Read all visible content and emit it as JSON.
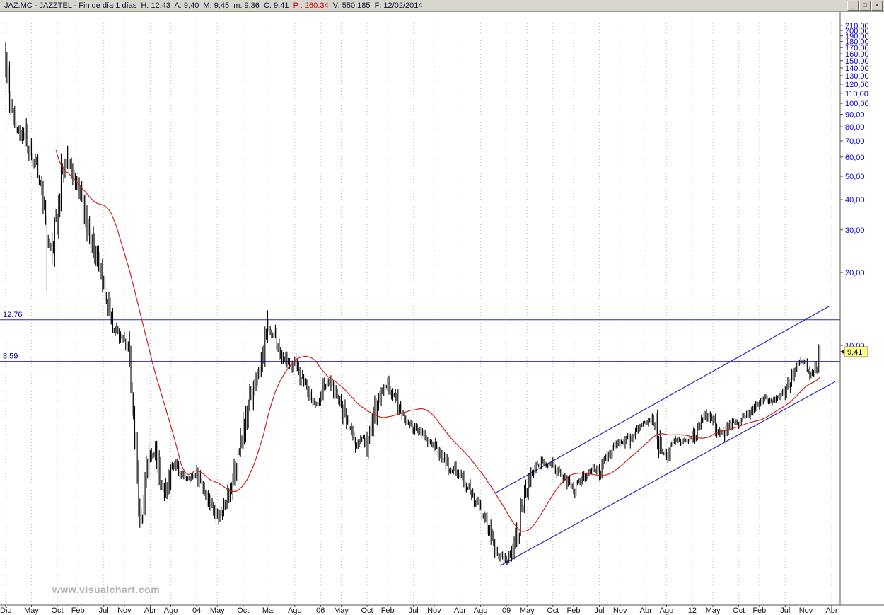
{
  "window": {
    "title_main": "JAZ.MC - JAZZTEL - Fin de día 1 días  H: 12:43  A: 9,40  M: 9,45  m: 9,36  C: 9,41  ",
    "title_p": "P : 260.34",
    "title_rest": "  V: 550.185  F: 12/02/2014",
    "buttons": {
      "minimize": "_",
      "maximize": "□",
      "close": "×"
    }
  },
  "chart_data": {
    "type": "bar",
    "subtype": "ohlc-daily-price-bars",
    "title": "JAZ.MC - JAZZTEL - Fin de día 1 días",
    "yscale": "log",
    "ylim": [
      1.2,
      210
    ],
    "x_start": "2000-12",
    "x_end": "2014-02",
    "last_price": 9.41,
    "monthly_close": [
      148,
      95,
      80,
      72,
      78,
      62,
      55,
      45,
      28,
      26,
      36,
      50,
      60,
      52,
      45,
      38,
      31,
      26,
      21,
      16.5,
      14,
      12,
      11,
      10.2,
      9.3,
      4.5,
      1.9,
      2.5,
      3.4,
      3.7,
      2.7,
      2.3,
      3.0,
      3.3,
      2.95,
      2.8,
      2.85,
      2.9,
      2.65,
      2.4,
      2.15,
      1.95,
      2.1,
      2.35,
      2.7,
      3.4,
      4.3,
      5.3,
      6.6,
      7.9,
      9.6,
      12.1,
      11.2,
      9.7,
      8.7,
      8.1,
      8.7,
      7.5,
      6.7,
      6.1,
      5.7,
      6.0,
      6.8,
      7.1,
      6.2,
      5.6,
      4.9,
      4.3,
      3.9,
      4.1,
      3.95,
      4.7,
      5.9,
      6.6,
      6.9,
      6.3,
      5.7,
      5.1,
      4.7,
      4.45,
      4.7,
      4.25,
      3.95,
      3.85,
      3.6,
      3.35,
      3.05,
      3.1,
      2.9,
      2.7,
      2.45,
      2.25,
      2.1,
      1.9,
      1.62,
      1.45,
      1.35,
      1.3,
      1.36,
      1.62,
      2.2,
      2.6,
      2.9,
      3.15,
      3.3,
      3.2,
      3.25,
      3.0,
      2.85,
      2.7,
      2.55,
      2.75,
      2.9,
      3.05,
      3.1,
      3.0,
      3.3,
      3.6,
      3.85,
      3.95,
      3.9,
      4.2,
      4.5,
      4.7,
      4.8,
      4.95,
      4.6,
      3.6,
      3.5,
      3.9,
      4.1,
      4.0,
      4.05,
      4.1,
      4.5,
      4.9,
      5.25,
      5.0,
      4.4,
      4.3,
      4.6,
      4.85,
      4.8,
      5.0,
      5.2,
      5.5,
      5.8,
      6.0,
      5.9,
      6.1,
      6.3,
      6.45,
      7.2,
      8.0,
      8.5,
      8.3,
      7.7,
      8.3,
      9.41
    ],
    "moving_average": {
      "window_months": 10
    },
    "levels": [
      {
        "label": "12.76",
        "value": 12.76
      },
      {
        "label": "8.59",
        "value": 8.59
      }
    ],
    "trendlines": [
      {
        "name": "channel-upper-trendline",
        "t1": 94.8,
        "p1": 2.45,
        "t2": 159.5,
        "p2": 14.5
      },
      {
        "name": "channel-lower-trendline",
        "t1": 95.8,
        "p1": 1.23,
        "t2": 160.7,
        "p2": 7.09
      }
    ],
    "price_axis_ticks": [
      {
        "label": "210,00",
        "v": 210
      },
      {
        "label": "200,00",
        "v": 200
      },
      {
        "label": "190,00",
        "v": 190
      },
      {
        "label": "180,00",
        "v": 180
      },
      {
        "label": "170,00",
        "v": 170
      },
      {
        "label": "160,00",
        "v": 160
      },
      {
        "label": "150,00",
        "v": 150
      },
      {
        "label": "140,00",
        "v": 140
      },
      {
        "label": "130,00",
        "v": 130
      },
      {
        "label": "120,00",
        "v": 120
      },
      {
        "label": "110,00",
        "v": 110
      },
      {
        "label": "100,00",
        "v": 100
      },
      {
        "label": "90,00",
        "v": 90
      },
      {
        "label": "80,00",
        "v": 80
      },
      {
        "label": "70,00",
        "v": 70
      },
      {
        "label": "60,00",
        "v": 60
      },
      {
        "label": "50,00",
        "v": 50
      },
      {
        "label": "40,00",
        "v": 40
      },
      {
        "label": "30,00",
        "v": 30
      },
      {
        "label": "20,00",
        "v": 20
      },
      {
        "label": "10,00",
        "v": 10
      }
    ],
    "time_axis_ticks": [
      {
        "label": "Dic",
        "t": 0
      },
      {
        "label": "May",
        "t": 5
      },
      {
        "label": "Oct",
        "t": 10
      },
      {
        "label": "Feb",
        "t": 14
      },
      {
        "label": "Jul",
        "t": 19
      },
      {
        "label": "Nov",
        "t": 23
      },
      {
        "label": "Abr",
        "t": 28
      },
      {
        "label": "Ago",
        "t": 32
      },
      {
        "label": "04",
        "t": 37
      },
      {
        "label": "May",
        "t": 41
      },
      {
        "label": "Oct",
        "t": 46
      },
      {
        "label": "Mar",
        "t": 51
      },
      {
        "label": "Ago",
        "t": 56
      },
      {
        "label": "06",
        "t": 61
      },
      {
        "label": "May",
        "t": 65
      },
      {
        "label": "Oct",
        "t": 70
      },
      {
        "label": "Feb",
        "t": 74
      },
      {
        "label": "Jul",
        "t": 79
      },
      {
        "label": "Nov",
        "t": 83
      },
      {
        "label": "Abr",
        "t": 88
      },
      {
        "label": "Ago",
        "t": 92
      },
      {
        "label": "09",
        "t": 97
      },
      {
        "label": "May",
        "t": 101
      },
      {
        "label": "Oct",
        "t": 106
      },
      {
        "label": "Feb",
        "t": 110
      },
      {
        "label": "Jul",
        "t": 115
      },
      {
        "label": "Nov",
        "t": 119
      },
      {
        "label": "Abr",
        "t": 124
      },
      {
        "label": "Ago",
        "t": 128
      },
      {
        "label": "12",
        "t": 133
      },
      {
        "label": "May",
        "t": 137
      },
      {
        "label": "Oct",
        "t": 142
      },
      {
        "label": "Feb",
        "t": 146
      },
      {
        "label": "Jul",
        "t": 151
      },
      {
        "label": "Nov",
        "t": 155
      },
      {
        "label": "Abr",
        "t": 160
      }
    ],
    "price_marker": {
      "label": "9,41",
      "value": 9.41
    },
    "watermark": "www.visualchart.com",
    "colors": {
      "bars": "#000000",
      "ma": "#cc2020",
      "trendline": "#2828bb",
      "level": "#2828bb",
      "level_label": "#000080",
      "axis_price": "#0000cc",
      "axis_time": "#151515",
      "marker_bg": "#ffff8c",
      "grid": "#c0c0c0"
    }
  }
}
